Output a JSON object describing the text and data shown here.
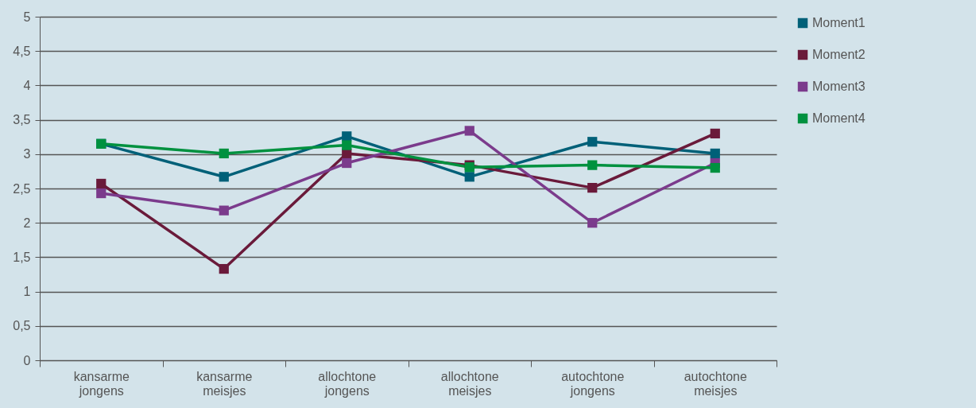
{
  "chart_data": {
    "type": "line",
    "categories": [
      "kansarme jongens",
      "kansarme meisjes",
      "allochtone jongens",
      "allochtone meisjes",
      "autochtone jongens",
      "autochtone meisjes"
    ],
    "series": [
      {
        "name": "Moment1",
        "color": "#006078",
        "values": [
          3.15,
          2.67,
          3.26,
          2.67,
          3.18,
          3.01
        ]
      },
      {
        "name": "Moment2",
        "color": "#6a1a3a",
        "values": [
          2.57,
          1.33,
          3.01,
          2.84,
          2.51,
          3.3
        ]
      },
      {
        "name": "Moment3",
        "color": "#7b3b8c",
        "values": [
          2.43,
          2.18,
          2.87,
          3.34,
          2.0,
          2.87
        ]
      },
      {
        "name": "Moment4",
        "color": "#00913f",
        "values": [
          3.15,
          3.01,
          3.13,
          2.81,
          2.84,
          2.8
        ]
      }
    ],
    "ylim": [
      0,
      5
    ],
    "yticks": [
      0,
      {
        "value": 0.5,
        "label": "0,5"
      },
      1,
      {
        "value": 1.5,
        "label": "1,5"
      },
      2,
      {
        "value": 2.5,
        "label": "2,5"
      },
      3,
      {
        "value": 3.5,
        "label": "3,5"
      },
      4,
      {
        "value": 4.5,
        "label": "4,5"
      },
      5
    ],
    "grid": "y",
    "legend": "right",
    "marker": "square",
    "line_style": "solid"
  }
}
